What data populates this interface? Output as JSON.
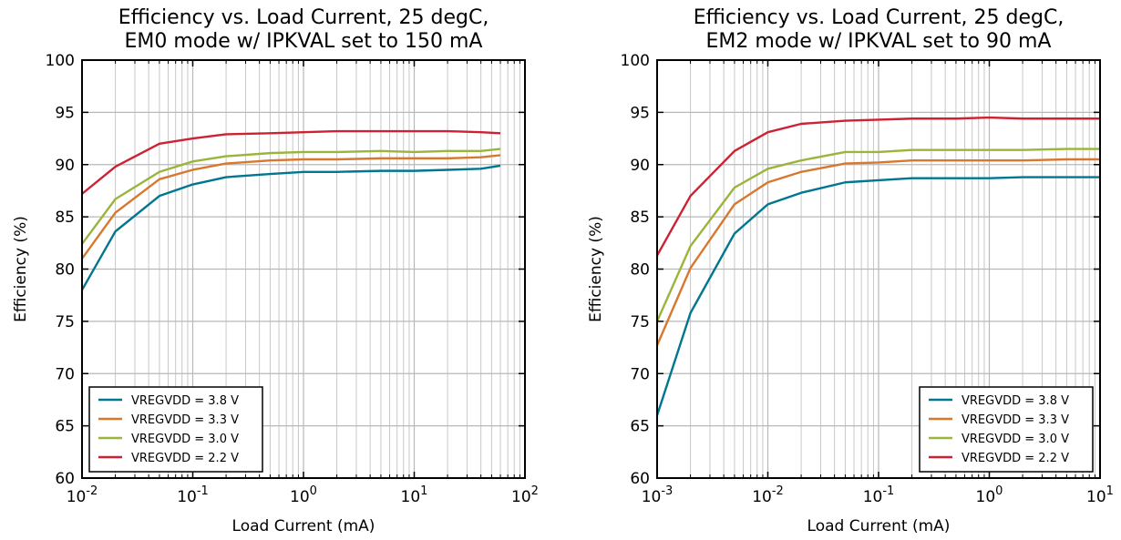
{
  "chart_data": [
    {
      "type": "line",
      "title": [
        "Efficiency vs. Load Current, 25 degC,",
        "EM0 mode w/ IPKVAL set to 150 mA"
      ],
      "xlabel": "Load Current (mA)",
      "ylabel": "Efficiency (%)",
      "xscale": "log",
      "xlim": [
        0.01,
        100
      ],
      "ylim": [
        60,
        100
      ],
      "yticks": [
        "60",
        "65",
        "70",
        "75",
        "80",
        "85",
        "90",
        "95",
        "100"
      ],
      "xtick_base": "10",
      "xtick_exps": [
        "-2",
        "-1",
        "0",
        "1",
        "2"
      ],
      "grid": true,
      "legend_position": "lower-left",
      "series": [
        {
          "name": "VREGVDD = 3.8 V",
          "color": "#00768f",
          "x": [
            0.01,
            0.02,
            0.05,
            0.1,
            0.2,
            0.5,
            1,
            2,
            5,
            10,
            20,
            40,
            60
          ],
          "y": [
            78.0,
            83.6,
            87.0,
            88.1,
            88.8,
            89.1,
            89.3,
            89.3,
            89.4,
            89.4,
            89.5,
            89.6,
            89.9
          ]
        },
        {
          "name": "VREGVDD = 3.3 V",
          "color": "#d8782f",
          "x": [
            0.01,
            0.02,
            0.05,
            0.1,
            0.2,
            0.5,
            1,
            2,
            5,
            10,
            20,
            40,
            60
          ],
          "y": [
            81.0,
            85.4,
            88.6,
            89.5,
            90.1,
            90.4,
            90.5,
            90.5,
            90.6,
            90.6,
            90.6,
            90.7,
            90.9
          ]
        },
        {
          "name": "VREGVDD = 3.0 V",
          "color": "#9ab53a",
          "x": [
            0.01,
            0.02,
            0.05,
            0.1,
            0.2,
            0.5,
            1,
            2,
            5,
            10,
            20,
            40,
            60
          ],
          "y": [
            82.4,
            86.7,
            89.3,
            90.3,
            90.8,
            91.1,
            91.2,
            91.2,
            91.3,
            91.2,
            91.3,
            91.3,
            91.5
          ]
        },
        {
          "name": "VREGVDD = 2.2 V",
          "color": "#cc2233",
          "x": [
            0.01,
            0.02,
            0.05,
            0.1,
            0.2,
            0.5,
            1,
            2,
            5,
            10,
            20,
            40,
            60
          ],
          "y": [
            87.2,
            89.8,
            92.0,
            92.5,
            92.9,
            93.0,
            93.1,
            93.2,
            93.2,
            93.2,
            93.2,
            93.1,
            93.0
          ]
        }
      ]
    },
    {
      "type": "line",
      "title": [
        "Efficiency vs. Load Current, 25 degC,",
        "EM2 mode w/ IPKVAL set to 90 mA"
      ],
      "xlabel": "Load Current (mA)",
      "ylabel": "Efficiency (%)",
      "xscale": "log",
      "xlim": [
        0.001,
        10
      ],
      "ylim": [
        60,
        100
      ],
      "yticks": [
        "60",
        "65",
        "70",
        "75",
        "80",
        "85",
        "90",
        "95",
        "100"
      ],
      "xtick_base": "10",
      "xtick_exps": [
        "-3",
        "-2",
        "-1",
        "0",
        "1"
      ],
      "grid": true,
      "legend_position": "lower-right",
      "series": [
        {
          "name": "VREGVDD = 3.8 V",
          "color": "#00768f",
          "x": [
            0.001,
            0.002,
            0.005,
            0.01,
            0.02,
            0.05,
            0.1,
            0.2,
            0.5,
            1,
            2,
            5,
            10
          ],
          "y": [
            66.0,
            75.8,
            83.4,
            86.2,
            87.3,
            88.3,
            88.5,
            88.7,
            88.7,
            88.7,
            88.8,
            88.8,
            88.8
          ]
        },
        {
          "name": "VREGVDD = 3.3 V",
          "color": "#d8782f",
          "x": [
            0.001,
            0.002,
            0.005,
            0.01,
            0.02,
            0.05,
            0.1,
            0.2,
            0.5,
            1,
            2,
            5,
            10
          ],
          "y": [
            72.7,
            80.1,
            86.2,
            88.3,
            89.3,
            90.1,
            90.2,
            90.4,
            90.4,
            90.4,
            90.4,
            90.5,
            90.5
          ]
        },
        {
          "name": "VREGVDD = 3.0 V",
          "color": "#9ab53a",
          "x": [
            0.001,
            0.002,
            0.005,
            0.01,
            0.02,
            0.05,
            0.1,
            0.2,
            0.5,
            1,
            2,
            5,
            10
          ],
          "y": [
            75.0,
            82.2,
            87.8,
            89.6,
            90.4,
            91.2,
            91.2,
            91.4,
            91.4,
            91.4,
            91.4,
            91.5,
            91.5
          ]
        },
        {
          "name": "VREGVDD = 2.2 V",
          "color": "#cc2233",
          "x": [
            0.001,
            0.002,
            0.005,
            0.01,
            0.02,
            0.05,
            0.1,
            0.2,
            0.5,
            1,
            2,
            5,
            10
          ],
          "y": [
            81.3,
            87.0,
            91.3,
            93.1,
            93.9,
            94.2,
            94.3,
            94.4,
            94.4,
            94.5,
            94.4,
            94.4,
            94.4
          ]
        }
      ]
    }
  ]
}
